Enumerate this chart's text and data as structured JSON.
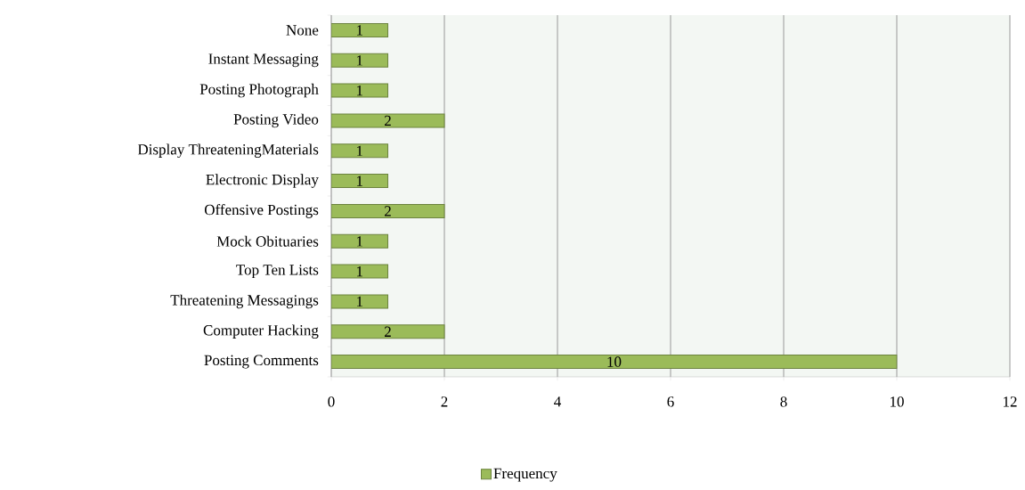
{
  "chart_data": {
    "type": "bar",
    "orientation": "horizontal",
    "categories": [
      "None",
      "Instant Messaging",
      "Posting Photograph",
      "Posting Video",
      "Display ThreateningMaterials",
      "Electronic Display",
      "Offensive Postings",
      "Mock Obituaries",
      "Top Ten Lists",
      "Threatening Messagings",
      "Computer Hacking",
      "Posting Comments"
    ],
    "series": [
      {
        "name": "Frequency",
        "color": "#9bbb59",
        "values": [
          1,
          1,
          1,
          2,
          1,
          1,
          2,
          1,
          1,
          1,
          2,
          10
        ]
      }
    ],
    "xlim": [
      0,
      12
    ],
    "xticks": [
      0,
      2,
      4,
      6,
      8,
      10,
      12
    ],
    "grid": "x",
    "legend": "bottom",
    "data_labels": true
  }
}
